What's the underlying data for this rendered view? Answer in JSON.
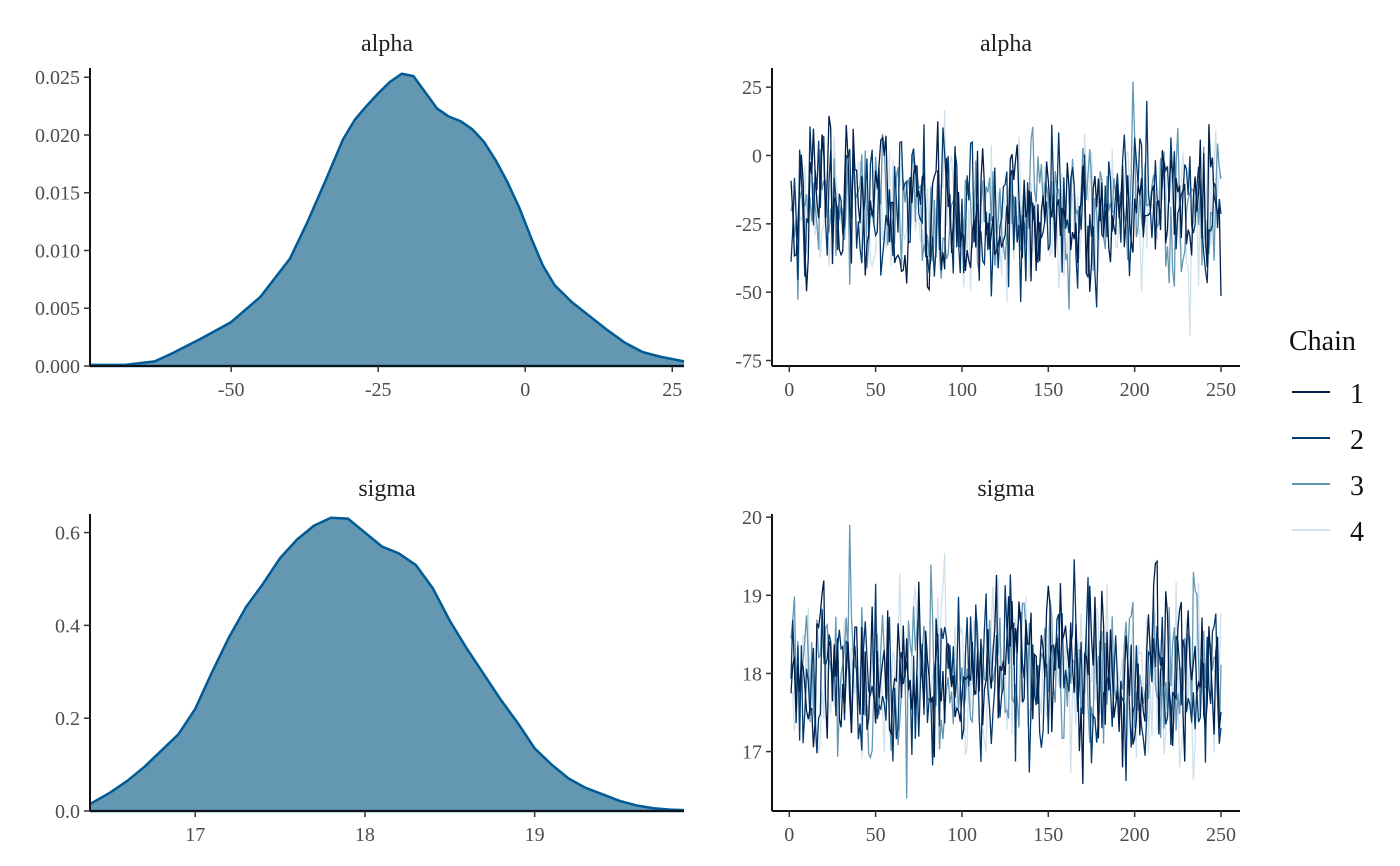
{
  "chart_data": [
    {
      "type": "area",
      "panel": "density",
      "title": "alpha",
      "xlabel": "",
      "ylabel": "",
      "xlim": [
        -74,
        27
      ],
      "ylim": [
        0,
        0.0258
      ],
      "xticks": [
        -50,
        -25,
        0,
        25
      ],
      "xtick_labels": [
        "-50",
        "-25",
        "0",
        "25"
      ],
      "yticks": [
        0,
        0.005,
        0.01,
        0.015,
        0.02,
        0.025
      ],
      "ytick_labels": [
        "0.000",
        "0.005",
        "0.010",
        "0.015",
        "0.020",
        "0.025"
      ],
      "x": [
        -74,
        -68,
        -63,
        -60,
        -55,
        -50,
        -45,
        -40,
        -37,
        -34,
        -31,
        -29,
        -27,
        -25,
        -23,
        -21,
        -19,
        -17,
        -15,
        -13,
        -11,
        -9,
        -7,
        -5,
        -3,
        -1,
        1,
        3,
        5,
        8,
        11,
        14,
        17,
        20,
        23,
        27
      ],
      "y": [
        0.0001,
        0.0001,
        0.0004,
        0.0011,
        0.0024,
        0.0038,
        0.006,
        0.0093,
        0.0125,
        0.016,
        0.0196,
        0.0213,
        0.0225,
        0.0236,
        0.0246,
        0.0253,
        0.0251,
        0.0237,
        0.0223,
        0.0216,
        0.0212,
        0.0205,
        0.0194,
        0.0178,
        0.0159,
        0.0137,
        0.0111,
        0.0087,
        0.007,
        0.0055,
        0.0043,
        0.0031,
        0.002,
        0.0012,
        0.0008,
        0.0004
      ],
      "grid": false
    },
    {
      "type": "line",
      "panel": "trace",
      "title": "alpha",
      "xlabel": "",
      "ylabel": "",
      "xlim": [
        -10,
        261
      ],
      "ylim": [
        -77,
        32
      ],
      "xticks": [
        0,
        50,
        100,
        150,
        200,
        250
      ],
      "xtick_labels": [
        "0",
        "50",
        "100",
        "150",
        "200",
        "250"
      ],
      "yticks": [
        -75,
        -50,
        -25,
        0,
        25
      ],
      "ytick_labels": [
        "-75",
        "-50",
        "-25",
        "0",
        "25"
      ],
      "iterations": [
        1,
        250
      ],
      "trace_mean": -20,
      "trace_sd": 14,
      "trace_min": -74,
      "trace_max": 27,
      "legend_position": "right",
      "grid": false
    },
    {
      "type": "area",
      "panel": "density",
      "title": "sigma",
      "xlabel": "",
      "ylabel": "",
      "xlim": [
        16.38,
        19.88
      ],
      "ylim": [
        0,
        0.64
      ],
      "xticks": [
        17,
        18,
        19
      ],
      "xtick_labels": [
        "17",
        "18",
        "19"
      ],
      "yticks": [
        0,
        0.2,
        0.4,
        0.6
      ],
      "ytick_labels": [
        "0.0",
        "0.2",
        "0.4",
        "0.6"
      ],
      "x": [
        16.38,
        16.5,
        16.6,
        16.7,
        16.8,
        16.9,
        17.0,
        17.1,
        17.2,
        17.3,
        17.4,
        17.5,
        17.6,
        17.7,
        17.8,
        17.9,
        18.0,
        18.1,
        18.2,
        18.3,
        18.4,
        18.5,
        18.6,
        18.7,
        18.8,
        18.9,
        19.0,
        19.1,
        19.2,
        19.3,
        19.4,
        19.5,
        19.6,
        19.7,
        19.8,
        19.88
      ],
      "y": [
        0.015,
        0.04,
        0.065,
        0.095,
        0.13,
        0.165,
        0.22,
        0.3,
        0.375,
        0.44,
        0.49,
        0.545,
        0.585,
        0.615,
        0.632,
        0.63,
        0.6,
        0.57,
        0.555,
        0.53,
        0.48,
        0.41,
        0.35,
        0.295,
        0.24,
        0.19,
        0.135,
        0.1,
        0.07,
        0.05,
        0.036,
        0.022,
        0.012,
        0.006,
        0.003,
        0.002
      ],
      "grid": false
    },
    {
      "type": "line",
      "panel": "trace",
      "title": "sigma",
      "xlabel": "",
      "ylabel": "",
      "xlim": [
        -10,
        261
      ],
      "ylim": [
        16.24,
        20.04
      ],
      "xticks": [
        0,
        50,
        100,
        150,
        200,
        250
      ],
      "xtick_labels": [
        "0",
        "50",
        "100",
        "150",
        "200",
        "250"
      ],
      "yticks": [
        17,
        18,
        19,
        20
      ],
      "ytick_labels": [
        "17",
        "18",
        "19",
        "20"
      ],
      "iterations": [
        1,
        250
      ],
      "trace_mean": 18.0,
      "trace_sd": 0.55,
      "trace_min": 16.4,
      "trace_max": 19.9,
      "legend_position": "right",
      "grid": false
    }
  ],
  "legend": {
    "title": "Chain",
    "items": [
      {
        "label": "1",
        "color": "#011f4b"
      },
      {
        "label": "2",
        "color": "#03396c"
      },
      {
        "label": "3",
        "color": "#6497b1"
      },
      {
        "label": "4",
        "color": "#d1e1ec"
      }
    ]
  },
  "colors": {
    "density_fill": "#6497b1",
    "density_line": "#005b96",
    "axis": "#111111"
  }
}
